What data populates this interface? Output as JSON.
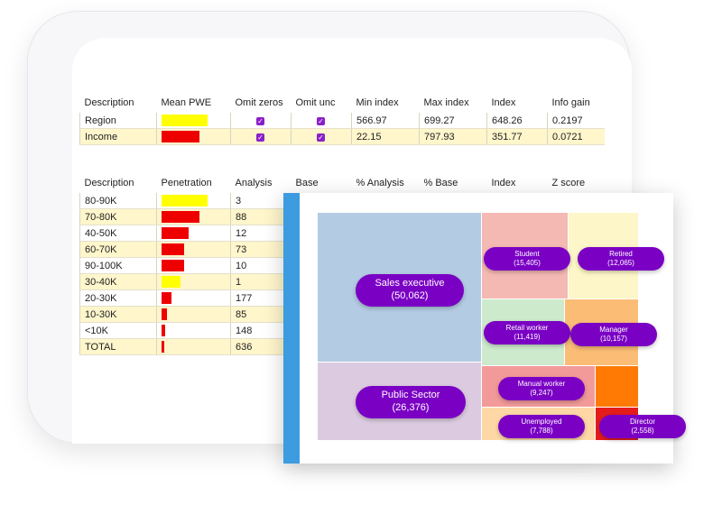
{
  "table1": {
    "headers": [
      "Description",
      "Mean PWE",
      "Omit zeros",
      "Omit unc",
      "Min index",
      "Max index",
      "Index",
      "Info gain"
    ],
    "rows": [
      {
        "description": "Region",
        "bar_color": "#ffff00",
        "bar_fraction": 0.98,
        "omit_zeros": "✓",
        "omit_unc": "✓",
        "min_index": "566.97",
        "max_index": "699.27",
        "index": "648.26",
        "info_gain": "0.2197"
      },
      {
        "description": "Income",
        "bar_color": "#ee0000",
        "bar_fraction": 0.8,
        "omit_zeros": "✓",
        "omit_unc": "✓",
        "min_index": "22.15",
        "max_index": "797.93",
        "index": "351.77",
        "info_gain": "0.0721"
      }
    ]
  },
  "table2": {
    "headers": [
      "Description",
      "Penetration",
      "Analysis",
      "Base",
      "% Analysis",
      "% Base",
      "Index",
      "Z score"
    ],
    "rows": [
      {
        "description": "80-90K",
        "bar_color": "#ffff00",
        "bar_fraction": 0.98,
        "analysis": "3"
      },
      {
        "description": "70-80K",
        "bar_color": "#ee0000",
        "bar_fraction": 0.8,
        "analysis": "88"
      },
      {
        "description": "40-50K",
        "bar_color": "#ee0000",
        "bar_fraction": 0.58,
        "analysis": "12"
      },
      {
        "description": "60-70K",
        "bar_color": "#ee0000",
        "bar_fraction": 0.48,
        "analysis": "73"
      },
      {
        "description": "90-100K",
        "bar_color": "#ee0000",
        "bar_fraction": 0.48,
        "analysis": "10"
      },
      {
        "description": "30-40K",
        "bar_color": "#ffff00",
        "bar_fraction": 0.4,
        "analysis": "1"
      },
      {
        "description": "20-30K",
        "bar_color": "#ee0000",
        "bar_fraction": 0.22,
        "analysis": "177"
      },
      {
        "description": "10-30K",
        "bar_color": "#ee0000",
        "bar_fraction": 0.12,
        "analysis": "85"
      },
      {
        "description": "<10K",
        "bar_color": "#ee0000",
        "bar_fraction": 0.07,
        "analysis": "148"
      },
      {
        "description": "TOTAL",
        "bar_color": "#ee0000",
        "bar_fraction": 0.04,
        "analysis": "636"
      }
    ]
  },
  "treemap": {
    "tiles": [
      {
        "key": "sales-executive",
        "label": "Sales executive",
        "value": "(50,062)",
        "color": "#b3cbe3"
      },
      {
        "key": "public-sector",
        "label": "Public Sector",
        "value": "(26,376)",
        "color": "#dccbe0"
      },
      {
        "key": "student",
        "label": "Student",
        "value": "(15,405)",
        "color": "#f4b9b3"
      },
      {
        "key": "retired",
        "label": "Retired",
        "value": "(12,065)",
        "color": "#fcf6c8"
      },
      {
        "key": "retail-worker",
        "label": "Retail worker",
        "value": "(11,419)",
        "color": "#cdeacd"
      },
      {
        "key": "manager",
        "label": "Manager",
        "value": "(10,157)",
        "color": "#fbbd76"
      },
      {
        "key": "manual-worker",
        "label": "Manual worker",
        "value": "(9,247)",
        "color": "#f29a9a"
      },
      {
        "key": "unemployed",
        "label": "Unemployed",
        "value": "(7,788)",
        "color": "#fdd8a6"
      },
      {
        "key": "orange",
        "label": "",
        "value": "",
        "color": "#ff7a05"
      },
      {
        "key": "director",
        "label": "Director",
        "value": "(2,558)",
        "color": "#e51c1c"
      }
    ]
  }
}
